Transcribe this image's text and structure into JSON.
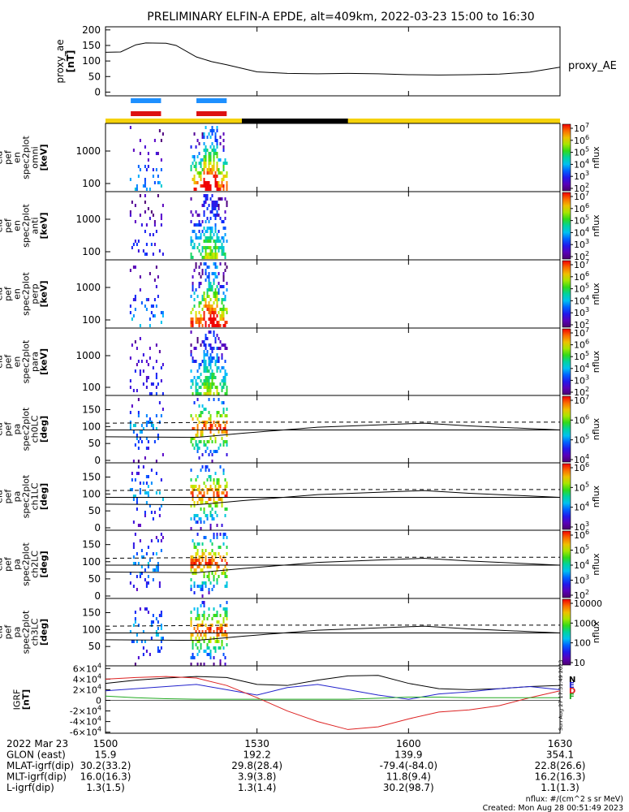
{
  "title": "PRELIMINARY ELFIN-A EPDE, alt=409km, 2022-03-23 15:00 to 16:30",
  "colors": {
    "sci_zone_bar": "#f5d20a",
    "night_bar": "#000000",
    "blue_marker": "#1e90ff",
    "red_marker": "#dd1111",
    "bx": "#000000",
    "by": "#dd2222",
    "bz": "#2222cc",
    "bt": "#22aa22"
  },
  "footer": {
    "nflux_units": "nflux: #/(cm^2 s sr MeV)",
    "created": "Created: Mon Aug 28 00:51:49 2023",
    "side_timestamp": "Sun Aug 27 17:31:49 2023"
  },
  "chart_data": {
    "type": "multi-panel spectrogram",
    "time_range": [
      "2022-03-23 15:00",
      "2022-03-23 16:30"
    ],
    "science_zone_markers": {
      "blue": [
        [
          15.0833,
          15.1833
        ],
        [
          15.3,
          15.4
        ]
      ],
      "red": [
        [
          15.0833,
          15.1833
        ],
        [
          15.3,
          15.4
        ]
      ]
    },
    "night_segment": [
      15.45,
      15.8
    ],
    "panels": [
      {
        "id": "proxy_ae",
        "kind": "line",
        "ylabel": "proxy_ae\n[nT]",
        "legend": "proxy_AE",
        "yticks": [
          0,
          50,
          100,
          150,
          200
        ],
        "ylim": [
          -12,
          210
        ],
        "x": [
          15.0,
          15.05,
          15.1,
          15.133,
          15.2,
          15.233,
          15.3,
          15.35,
          15.4,
          15.5,
          15.6,
          15.7,
          15.8,
          15.9,
          16.0,
          16.1,
          16.2,
          16.3,
          16.4,
          16.5
        ],
        "y": [
          128,
          129,
          152,
          158,
          157,
          150,
          113,
          98,
          88,
          65,
          60,
          59,
          60,
          59,
          56,
          55,
          56,
          58,
          64,
          80
        ]
      },
      {
        "id": "omni",
        "kind": "spectrogram",
        "ylabel_lines": [
          "ela",
          "pef",
          "en",
          "spec2plot",
          "omni",
          "[keV]"
        ],
        "yticks": [
          "100",
          "1000"
        ],
        "zlabel": "nflux",
        "zticks": [
          "10^2",
          "10^3",
          "10^4",
          "10^5",
          "10^6",
          "10^7"
        ],
        "zlog_range": [
          1.6,
          7
        ]
      },
      {
        "id": "anti",
        "kind": "spectrogram",
        "ylabel_lines": [
          "ela",
          "pef",
          "en",
          "spec2plot",
          "anti",
          "[keV]"
        ],
        "yticks": [
          "100",
          "1000"
        ],
        "zlabel": "nflux",
        "zticks": [
          "10^2",
          "10^3",
          "10^4",
          "10^5",
          "10^6",
          "10^7"
        ],
        "zlog_range": [
          1.6,
          7
        ]
      },
      {
        "id": "perp",
        "kind": "spectrogram",
        "ylabel_lines": [
          "ela",
          "pef",
          "en",
          "spec2plot",
          "perp",
          "[keV]"
        ],
        "yticks": [
          "100",
          "1000"
        ],
        "zlabel": "nflux",
        "zticks": [
          "10^2",
          "10^3",
          "10^4",
          "10^5",
          "10^6",
          "10^7"
        ],
        "zlog_range": [
          1.6,
          7
        ]
      },
      {
        "id": "para",
        "kind": "spectrogram",
        "ylabel_lines": [
          "ela",
          "pef",
          "en",
          "spec2plot",
          "para",
          "[keV]"
        ],
        "yticks": [
          "100",
          "1000"
        ],
        "zlabel": "nflux",
        "zticks": [
          "10^2",
          "10^3",
          "10^4",
          "10^5",
          "10^6",
          "10^7"
        ],
        "zlog_range": [
          1.6,
          7
        ]
      },
      {
        "id": "ch0LC",
        "kind": "pitch",
        "ylabel_lines": [
          "ela",
          "pef",
          "pa",
          "spec2plot",
          "ch0LC",
          "[deg]"
        ],
        "yticks": [
          "0",
          "50",
          "100",
          "150"
        ],
        "zlabel": "nflux",
        "zticks": [
          "10^4",
          "10^5",
          "10^6",
          "10^7"
        ],
        "zlog_range": [
          3.5,
          7
        ]
      },
      {
        "id": "ch1LC",
        "kind": "pitch",
        "ylabel_lines": [
          "ela",
          "pef",
          "pa",
          "spec2plot",
          "ch1LC",
          "[deg]"
        ],
        "yticks": [
          "0",
          "50",
          "100",
          "150"
        ],
        "zlabel": "nflux",
        "zticks": [
          "10^3",
          "10^4",
          "10^5",
          "10^6"
        ],
        "zlog_range": [
          2.7,
          6.5
        ]
      },
      {
        "id": "ch2LC",
        "kind": "pitch",
        "ylabel_lines": [
          "ela",
          "pef",
          "pa",
          "spec2plot",
          "ch2LC",
          "[deg]"
        ],
        "yticks": [
          "0",
          "50",
          "100",
          "150"
        ],
        "zlabel": "nflux",
        "zticks": [
          "10^2",
          "10^3",
          "10^4",
          "10^5",
          "10^6"
        ],
        "zlog_range": [
          1.8,
          6.2
        ]
      },
      {
        "id": "ch3LC",
        "kind": "pitch",
        "ylabel_lines": [
          "ela",
          "pef",
          "pa",
          "spec2plot",
          "ch3LC",
          "[deg]"
        ],
        "yticks": [
          "50",
          "100",
          "150"
        ],
        "zlabel": "nflux",
        "zticks": [
          "10",
          "100",
          "1000",
          "10000"
        ],
        "zlog_range": [
          1,
          4.6
        ]
      },
      {
        "id": "igrf",
        "kind": "lines",
        "ylabel_lines": [
          "IGRF",
          "[nT]"
        ],
        "yticks": [
          "-6×10^4",
          "-4×10^4",
          "-2×10^4",
          "0",
          "2×10^4",
          "4×10^4",
          "6×10^4"
        ],
        "ylim": [
          -62000,
          65000
        ],
        "legend": [
          "N",
          "E",
          "D",
          "F"
        ],
        "x": [
          15.0,
          15.1,
          15.2,
          15.3,
          15.4,
          15.5,
          15.6,
          15.7,
          15.8,
          15.9,
          16.0,
          16.1,
          16.2,
          16.3,
          16.4,
          16.5
        ],
        "series": [
          {
            "name": "N",
            "color": "#000000",
            "values": [
              32000,
              38000,
              42000,
              45000,
              43000,
              30000,
              28000,
              38000,
              46000,
              47000,
              32000,
              22000,
              20000,
              22000,
              26000,
              28000
            ]
          },
          {
            "name": "E",
            "color": "#2222cc",
            "values": [
              18000,
              22000,
              26000,
              30000,
              20000,
              10000,
              24000,
              30000,
              20000,
              10000,
              2000,
              12000,
              16000,
              22000,
              26000,
              20000
            ]
          },
          {
            "name": "D",
            "color": "#dd2222",
            "values": [
              40000,
              43000,
              45000,
              42000,
              28000,
              5000,
              -20000,
              -40000,
              -55000,
              -50000,
              -35000,
              -22000,
              -18000,
              -10000,
              5000,
              18000
            ]
          },
          {
            "name": "F",
            "color": "#22aa22",
            "values": [
              8000,
              5000,
              3000,
              2000,
              2000,
              2000,
              2000,
              2000,
              2000,
              4000,
              6000,
              6000,
              5000,
              5000,
              5000,
              5000
            ]
          }
        ]
      }
    ],
    "x_axis": {
      "rows": [
        {
          "label": "2022 Mar 23",
          "values": [
            "1500",
            "1530",
            "1600",
            "1630"
          ]
        },
        {
          "label": "GLON (east)",
          "values": [
            "15.9",
            "192.2",
            "139.9",
            "354.1"
          ]
        },
        {
          "label": "MLAT-igrf(dip)",
          "values": [
            "30.2(33.2)",
            "29.8(28.4)",
            "-79.4(-84.0)",
            "22.8(26.6)"
          ]
        },
        {
          "label": "MLT-igrf(dip)",
          "values": [
            "16.0(16.3)",
            "3.9(3.8)",
            "11.8(9.4)",
            "16.2(16.3)"
          ]
        },
        {
          "label": "L-igrf(dip)",
          "values": [
            "1.3(1.5)",
            "1.3(1.4)",
            "30.2(98.7)",
            "1.1(1.3)"
          ]
        }
      ]
    }
  }
}
